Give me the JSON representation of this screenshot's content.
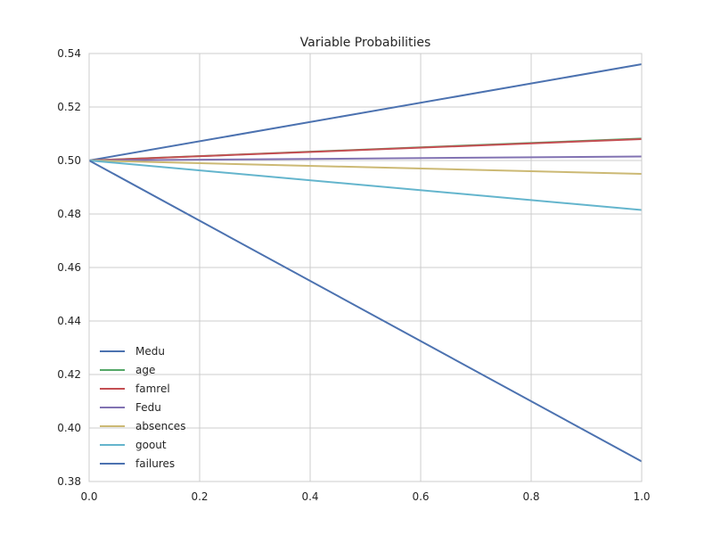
{
  "chart_data": {
    "type": "line",
    "title": "Variable Probabilities",
    "xlabel": "",
    "ylabel": "",
    "xlim": [
      0.0,
      1.0
    ],
    "ylim": [
      0.38,
      0.54
    ],
    "x_ticks": [
      "0.0",
      "0.2",
      "0.4",
      "0.6",
      "0.8",
      "1.0"
    ],
    "y_ticks": [
      "0.38",
      "0.40",
      "0.42",
      "0.44",
      "0.46",
      "0.48",
      "0.50",
      "0.52",
      "0.54"
    ],
    "grid": true,
    "legend_position": "lower-left",
    "x": [
      0.0,
      1.0
    ],
    "series": [
      {
        "name": "Medu",
        "color": "#4c72b0",
        "values": [
          0.5,
          0.536
        ]
      },
      {
        "name": "age",
        "color": "#55a868",
        "values": [
          0.5,
          0.5082
        ]
      },
      {
        "name": "famrel",
        "color": "#c44e52",
        "values": [
          0.5,
          0.508
        ]
      },
      {
        "name": "Fedu",
        "color": "#8172b2",
        "values": [
          0.5,
          0.5015
        ]
      },
      {
        "name": "absences",
        "color": "#ccb974",
        "values": [
          0.5,
          0.495
        ]
      },
      {
        "name": "goout",
        "color": "#64b5cd",
        "values": [
          0.5,
          0.4815
        ]
      },
      {
        "name": "failures",
        "color": "#4c72b0",
        "values": [
          0.5,
          0.3875
        ]
      }
    ]
  }
}
